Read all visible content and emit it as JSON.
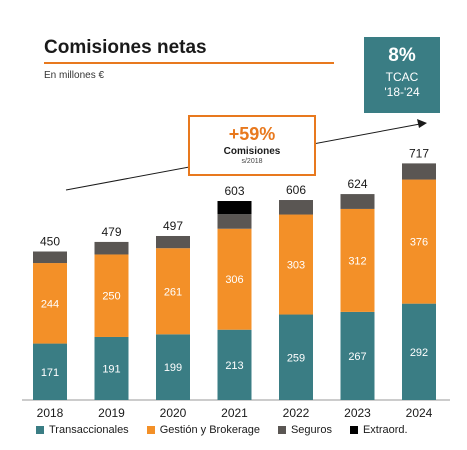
{
  "header": {
    "title": "Comisiones netas",
    "subtitle": "En millones €"
  },
  "tcac": {
    "percent": "8%",
    "label": "TCAC",
    "years": "'18-'24"
  },
  "growth": {
    "percent": "+59%",
    "label": "Comisiones",
    "sub": "s/2018"
  },
  "colors": {
    "accent": "#e8791e",
    "transaccionales": "#3a7d84",
    "gestion": "#f39028",
    "seguros": "#5a5653",
    "extraord": "#000000"
  },
  "chart_data": {
    "type": "bar",
    "stacked": true,
    "categories": [
      "2018",
      "2019",
      "2020",
      "2021",
      "2022",
      "2023",
      "2024"
    ],
    "series": [
      {
        "name": "Transaccionales",
        "values": [
          171,
          191,
          199,
          213,
          259,
          267,
          292
        ]
      },
      {
        "name": "Gestión y Brokerage",
        "values": [
          244,
          250,
          261,
          306,
          303,
          312,
          376
        ]
      },
      {
        "name": "Seguros",
        "values": [
          35,
          38,
          37,
          44,
          44,
          45,
          49
        ]
      },
      {
        "name": "Extraord.",
        "values": [
          0,
          0,
          0,
          40,
          0,
          0,
          0
        ]
      }
    ],
    "totals": [
      450,
      479,
      497,
      603,
      606,
      624,
      717
    ],
    "legend_position": "bottom",
    "grid": false
  }
}
